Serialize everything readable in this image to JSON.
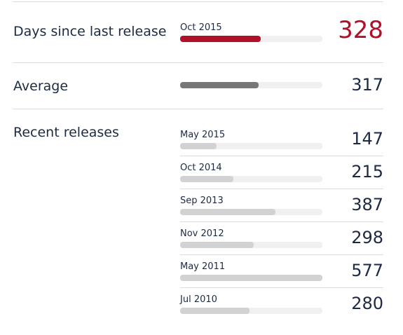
{
  "current": {
    "label": "Days since last release",
    "date": "Oct 2015",
    "days": 328
  },
  "average": {
    "label": "Average",
    "days": 317
  },
  "recent": {
    "label": "Recent releases",
    "items": [
      {
        "date": "May 2015",
        "days": 147
      },
      {
        "date": "Oct 2014",
        "days": 215
      },
      {
        "date": "Sep 2013",
        "days": 387
      },
      {
        "date": "Nov 2012",
        "days": 298
      },
      {
        "date": "May 2011",
        "days": 577
      },
      {
        "date": "Jul 2010",
        "days": 280
      }
    ]
  }
}
